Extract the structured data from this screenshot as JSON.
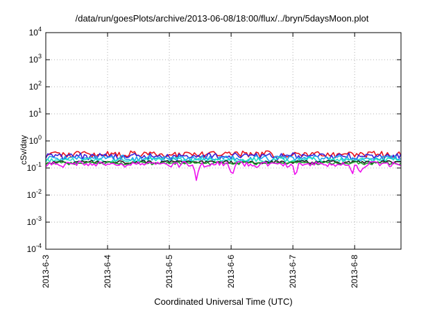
{
  "chart_data": {
    "type": "line",
    "title": "/data/run/goesPlots/archive/2013-06-08/18:00/flux/../bryn/5daysMoon.plot",
    "xlabel": "Coordinated Universal Time (UTC)",
    "ylabel": "cSv/day",
    "yscale": "log",
    "ylim": [
      0.0001,
      10000
    ],
    "yticks": [
      {
        "value": 0.0001,
        "base": "10",
        "exp": "-4"
      },
      {
        "value": 0.001,
        "base": "10",
        "exp": "-3"
      },
      {
        "value": 0.01,
        "base": "10",
        "exp": "-2"
      },
      {
        "value": 0.1,
        "base": "10",
        "exp": "-1"
      },
      {
        "value": 1,
        "base": "10",
        "exp": "0"
      },
      {
        "value": 10,
        "base": "10",
        "exp": "1"
      },
      {
        "value": 100,
        "base": "10",
        "exp": "2"
      },
      {
        "value": 1000,
        "base": "10",
        "exp": "3"
      },
      {
        "value": 10000,
        "base": "10",
        "exp": "4"
      }
    ],
    "xlim": [
      "2013-06-03T00:00",
      "2013-06-08T18:00"
    ],
    "xticks": [
      {
        "value": "2013-06-03T00:00",
        "label": "2013-6-3"
      },
      {
        "value": "2013-06-04T00:00",
        "label": "2013-6-4"
      },
      {
        "value": "2013-06-05T00:00",
        "label": "2013-6-5"
      },
      {
        "value": "2013-06-06T00:00",
        "label": "2013-6-6"
      },
      {
        "value": "2013-06-07T00:00",
        "label": "2013-6-7"
      },
      {
        "value": "2013-06-08T00:00",
        "label": "2013-6-8"
      }
    ],
    "grid": true,
    "series": [
      {
        "color": "#e8141e",
        "baseline": 0.33,
        "variation": 0.08,
        "dips": []
      },
      {
        "color": "#3a1fd6",
        "baseline": 0.28,
        "variation": 0.07,
        "dips": []
      },
      {
        "color": "#1fa5ee",
        "baseline": 0.23,
        "variation": 0.05,
        "dips": []
      },
      {
        "color": "#23e2c2",
        "baseline": 0.2,
        "variation": 0.035,
        "dips": []
      },
      {
        "color": "#1a1a1a",
        "baseline": 0.165,
        "variation": 0.02,
        "dips": []
      },
      {
        "color": "#1d9a2a",
        "baseline": 0.152,
        "variation": 0.018,
        "dips": []
      },
      {
        "color": "#ee10ee",
        "baseline": 0.14,
        "variation": 0.03,
        "dips": [
          {
            "x": "2013-06-05T10:30",
            "value": 0.035
          },
          {
            "x": "2013-06-06T00:30",
            "value": 0.05
          },
          {
            "x": "2013-06-07T01:00",
            "value": 0.045
          },
          {
            "x": "2013-06-07T23:00",
            "value": 0.05
          },
          {
            "x": "2013-06-08T02:00",
            "value": 0.06
          }
        ]
      }
    ]
  }
}
